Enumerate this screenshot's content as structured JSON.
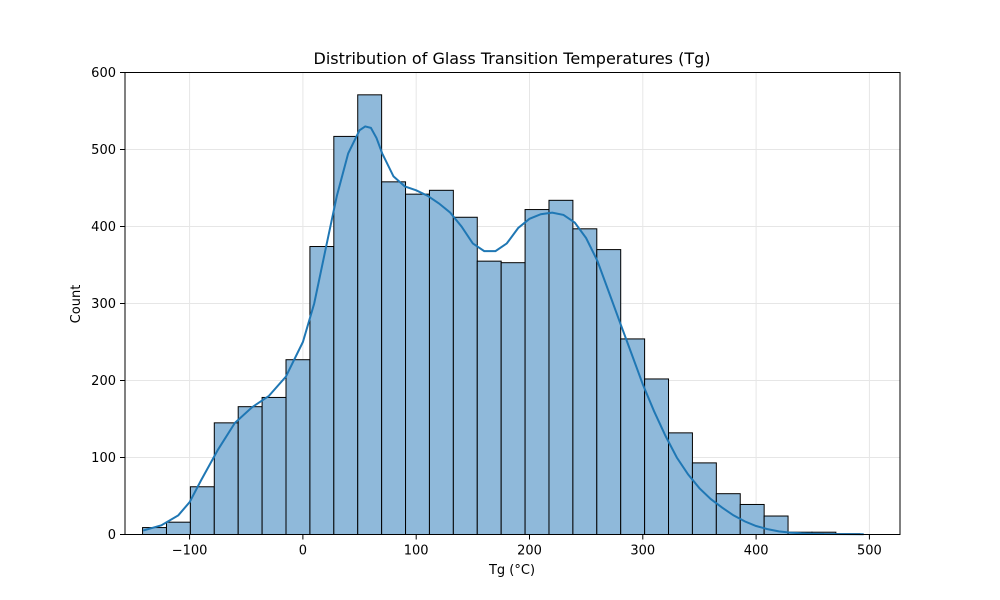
{
  "chart_data": {
    "type": "bar",
    "title": "Distribution of Glass Transition Temperatures (Tg)",
    "xlabel": "Tg (°C)",
    "ylabel": "Count",
    "xlim": [
      -157,
      527
    ],
    "ylim": [
      0,
      600
    ],
    "xticks": [
      -100,
      0,
      100,
      200,
      300,
      400,
      500
    ],
    "xtick_labels": [
      "−100",
      "0",
      "100",
      "200",
      "300",
      "400",
      "500"
    ],
    "yticks": [
      0,
      100,
      200,
      300,
      400,
      500,
      600
    ],
    "ytick_labels": [
      "0",
      "100",
      "200",
      "300",
      "400",
      "500",
      "600"
    ],
    "grid": true,
    "bar_color": "#8fb9da",
    "bar_edge_color": "#000000",
    "kde_color": "#1f77b4",
    "bin_edges": [
      -141.5,
      -120.4,
      -99.3,
      -78.2,
      -57.1,
      -36.0,
      -14.9,
      6.2,
      27.3,
      48.4,
      69.5,
      90.6,
      111.7,
      132.8,
      153.9,
      175.0,
      196.1,
      217.2,
      238.3,
      259.4,
      280.5,
      301.6,
      322.7,
      343.8,
      364.9,
      386.0,
      407.1,
      428.2,
      449.3,
      470.4,
      491.5
    ],
    "counts": [
      9,
      16,
      62,
      145,
      166,
      178,
      227,
      374,
      517,
      571,
      458,
      442,
      447,
      412,
      355,
      353,
      422,
      434,
      397,
      370,
      254,
      202,
      132,
      93,
      53,
      39,
      24,
      3,
      3,
      1
    ],
    "kde": {
      "x": [
        -141,
        -125,
        -110,
        -100,
        -90,
        -75,
        -60,
        -45,
        -30,
        -15,
        0,
        10,
        20,
        30,
        40,
        50,
        55,
        60,
        65,
        70,
        80,
        90,
        100,
        110,
        120,
        130,
        140,
        150,
        160,
        170,
        180,
        190,
        200,
        210,
        220,
        230,
        240,
        250,
        260,
        270,
        280,
        290,
        300,
        310,
        320,
        330,
        340,
        350,
        360,
        370,
        380,
        390,
        400,
        410,
        420,
        430,
        440,
        450,
        460,
        480,
        495
      ],
      "y": [
        5,
        12,
        25,
        42,
        70,
        110,
        145,
        165,
        180,
        205,
        250,
        300,
        370,
        440,
        495,
        525,
        530,
        528,
        515,
        495,
        465,
        452,
        447,
        440,
        430,
        418,
        400,
        378,
        368,
        368,
        378,
        398,
        410,
        416,
        418,
        415,
        405,
        385,
        355,
        315,
        275,
        235,
        195,
        160,
        128,
        100,
        78,
        60,
        46,
        35,
        25,
        17,
        11,
        7,
        4,
        2.5,
        1.5,
        1,
        0.7,
        0.5,
        0.3
      ]
    }
  }
}
